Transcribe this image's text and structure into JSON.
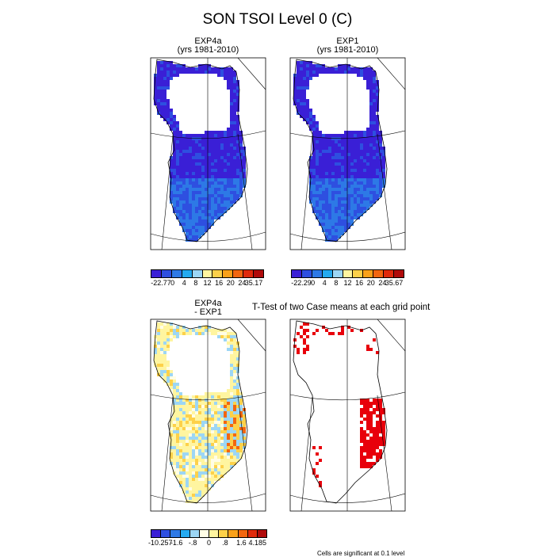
{
  "figure": {
    "title": "SON TSOI Level 0 (C)",
    "footnote": "Cells are significant at 0.1 level"
  },
  "colors": {
    "cold_scale": [
      "#3a1fd6",
      "#2e4fe0",
      "#2d79e6",
      "#24aaf0",
      "#9cd6f5",
      "#fff5a0",
      "#fdd14a",
      "#f9a11a",
      "#f26610",
      "#e02a0c",
      "#b00a0a"
    ],
    "diff_scale": [
      "#3a1fd6",
      "#2e4fe0",
      "#2d79e6",
      "#24aaf0",
      "#9cd6f5",
      "#fffde6",
      "#fff5a0",
      "#fdd14a",
      "#f9a11a",
      "#f26610",
      "#e02a0c",
      "#b00a0a"
    ],
    "significant": "#e8000b"
  },
  "panels": [
    {
      "id": "exp4a",
      "title_line1": "EXP4a",
      "title_line2": "(yrs 1981-2010)",
      "field": "mean_exp4a"
    },
    {
      "id": "exp1",
      "title_line1": "EXP1",
      "title_line2": "(yrs 1981-2010)",
      "field": "mean_exp1"
    },
    {
      "id": "diff",
      "title_line1": "EXP4a",
      "title_line2": "- EXP1",
      "field": "difference"
    },
    {
      "id": "ttest",
      "title_line1": "T-Test of two Case means at each grid point",
      "title_line2": "",
      "field": "significance"
    }
  ],
  "colorbars": [
    {
      "id": "cb1",
      "labels": [
        "-22.77",
        "0",
        "4",
        "8",
        "12",
        "16",
        "20",
        "24",
        "35.17"
      ],
      "min": -22.77,
      "max": 35.17
    },
    {
      "id": "cb2",
      "labels": [
        "-22.29",
        "0",
        "4",
        "8",
        "12",
        "16",
        "20",
        "24",
        "35.67"
      ],
      "min": -22.29,
      "max": 35.67
    },
    {
      "id": "cb3",
      "labels": [
        "-10.257",
        "-1.6",
        "-.8",
        "0",
        ".8",
        "1.6",
        "4.185"
      ],
      "min": -10.257,
      "max": 4.185
    }
  ],
  "chart_data": [
    {
      "type": "heatmap",
      "title": "EXP4a (yrs 1981-2010)",
      "variable": "TSOI Level 0",
      "units": "C",
      "season": "SON",
      "range": [
        -22.77,
        35.17
      ],
      "contour_levels": [
        0,
        4,
        8,
        12,
        16,
        20,
        24
      ],
      "dominant_value": "below 0 (ice-margin cells)"
    },
    {
      "type": "heatmap",
      "title": "EXP1 (yrs 1981-2010)",
      "variable": "TSOI Level 0",
      "units": "C",
      "season": "SON",
      "range": [
        -22.29,
        35.67
      ],
      "contour_levels": [
        0,
        4,
        8,
        12,
        16,
        20,
        24
      ],
      "dominant_value": "below 0 (ice-margin cells)"
    },
    {
      "type": "heatmap",
      "title": "EXP4a - EXP1",
      "variable": "TSOI Level 0 difference",
      "units": "C",
      "range": [
        -10.257,
        4.185
      ],
      "contour_levels": [
        -1.6,
        -0.8,
        0,
        0.8,
        1.6
      ]
    },
    {
      "type": "heatmap",
      "title": "T-Test of two Case means at each grid point",
      "significance_level": 0.1,
      "note": "Cells are significant at 0.1 level"
    }
  ]
}
